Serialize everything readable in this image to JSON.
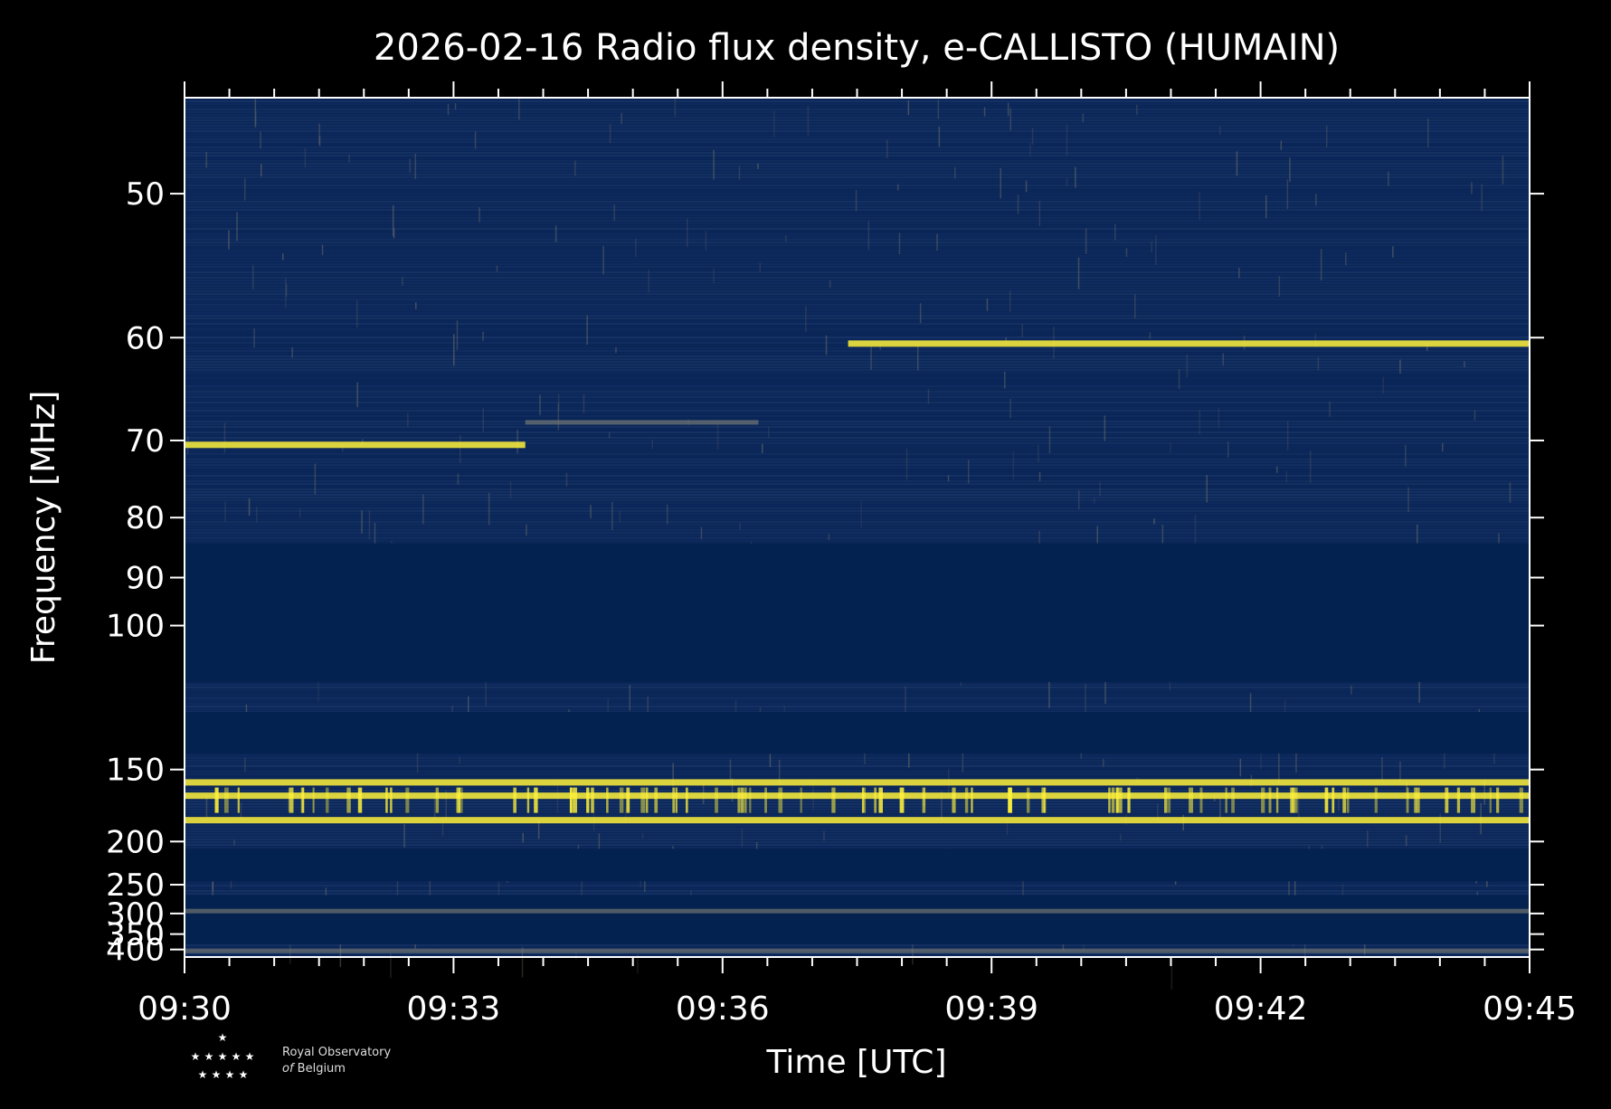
{
  "chart_data": {
    "type": "heatmap",
    "title": "2026-02-16 Radio flux density, e-CALLISTO (HUMAIN)",
    "xlabel": "Time [UTC]",
    "ylabel": "Frequency [MHz]",
    "x_ticks": [
      "09:30",
      "09:33",
      "09:36",
      "09:39",
      "09:42",
      "09:45"
    ],
    "x_range_minutes": [
      0,
      15
    ],
    "x_start": "09:30",
    "x_end": "09:45",
    "y_ticks": [
      50,
      60,
      70,
      80,
      90,
      100,
      150,
      200,
      250,
      300,
      350,
      400
    ],
    "y_scale": "reciprocal",
    "y_range": [
      45,
      430
    ],
    "colors": {
      "background": "#000000",
      "low": "#0a2557",
      "mid": "#8c8a7a",
      "high": "#fff23a",
      "masked": "#04224f"
    },
    "masked_bands_mhz": [
      [
        84,
        115
      ],
      [
        125,
        142
      ],
      [
        207,
        245
      ],
      [
        266,
        382
      ]
    ],
    "emission_features": [
      {
        "freq_mhz": 70.5,
        "t_start": "09:30",
        "t_end": "09:33:48",
        "intensity": "high"
      },
      {
        "freq_mhz": 68,
        "t_start": "09:33:48",
        "t_end": "09:36:24",
        "intensity": "mid"
      },
      {
        "freq_mhz": 60.5,
        "t_start": "09:37:24",
        "t_end": "09:45",
        "intensity": "high"
      },
      {
        "freq_mhz": 157,
        "t_start": "09:30",
        "t_end": "09:45",
        "intensity": "high"
      },
      {
        "freq_mhz": 165,
        "t_start": "09:30",
        "t_end": "09:45",
        "intensity": "high"
      },
      {
        "freq_mhz": 182,
        "t_start": "09:30",
        "t_end": "09:45",
        "intensity": "high"
      },
      {
        "freq_mhz": 295,
        "t_start": "09:30",
        "t_end": "09:45",
        "intensity": "mid"
      },
      {
        "freq_mhz": 405,
        "t_start": "09:30",
        "t_end": "09:45",
        "intensity": "mid"
      }
    ]
  },
  "logo": {
    "line1": "Royal Observatory",
    "line2_italic": "of",
    "line2_rest": " Belgium"
  }
}
